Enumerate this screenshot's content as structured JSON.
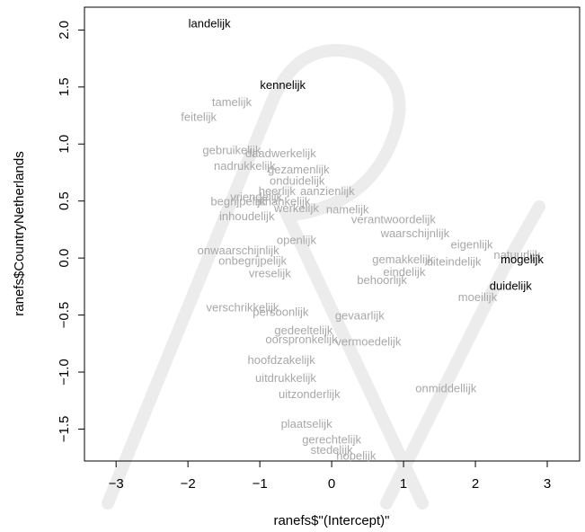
{
  "chart_data": {
    "type": "text-scatter",
    "x_label": "ranefs$\"(Intercept)\"",
    "y_label": "ranefs$CountryNetherlands",
    "xlim": [
      -3.44,
      3.45
    ],
    "ylim": [
      -1.78,
      2.2
    ],
    "xticks": [
      {
        "value": -3,
        "label": "−3"
      },
      {
        "value": -2,
        "label": "−2"
      },
      {
        "value": -1,
        "label": "−1"
      },
      0,
      1,
      2,
      3
    ],
    "yticks": [
      {
        "value": -1.5,
        "label": "−1.5"
      },
      {
        "value": -1,
        "label": "−1.0"
      },
      {
        "value": -0.5,
        "label": "−0.5"
      },
      {
        "value": 0,
        "label": "0.0"
      },
      0.5,
      {
        "value": 1,
        "label": "1.0"
      },
      1.5,
      {
        "value": 2,
        "label": "2.0"
      }
    ],
    "labels": [
      "landelijk",
      "kennelijk",
      "tamelijk",
      "feitelijk",
      "gebruikelijk",
      "daadwerkelijk",
      "nadrukkelijk",
      "gezamenlijk",
      "onduidelijk",
      "heerlijk",
      "aanzienlijk",
      "begrijpelijk",
      "vriendelijk",
      "afhankelijk",
      "werkelijk",
      "inhoudelijk",
      "namelijk",
      "verantwoordelijk",
      "waarschijnlijk",
      "eigenlijk",
      "natuurlijk",
      "mogelijk",
      "uiteindelijk",
      "gemakkelijk",
      "duidelijk",
      "moeilijk",
      "onwaarschijnlijk",
      "onbegrijpelijk",
      "openlijk",
      "eindelijk",
      "behoorlijk",
      "vreselijk",
      "verschrikkelijk",
      "persoonlijk",
      "gevaarlijk",
      "vermoedelijk",
      "gedeeltelijk",
      "oorspronkelijk",
      "hoofdzakelijk",
      "uitdrukkelijk",
      "uitzonderlijk",
      "onmiddellijk",
      "plaatselijk",
      "gerechtelijk",
      "stedelijk",
      "hopelijk"
    ],
    "x": [
      -1.7,
      -0.68,
      -1.39,
      -1.85,
      -1.39,
      -0.71,
      -1.21,
      -0.46,
      -0.48,
      -0.76,
      -0.06,
      -1.3,
      -1.05,
      -0.68,
      -0.49,
      -1.18,
      0.22,
      0.86,
      1.16,
      1.95,
      2.58,
      2.65,
      1.7,
      0.99,
      2.49,
      2.03,
      -1.3,
      -1.1,
      -0.49,
      1.01,
      0.7,
      -0.86,
      -1.24,
      -0.71,
      0.39,
      0.51,
      -0.39,
      -0.42,
      -0.7,
      -0.64,
      -0.31,
      1.59,
      -0.35,
      0.0,
      0.0,
      0.34
    ],
    "values": [
      2.05,
      1.51,
      1.36,
      1.23,
      0.94,
      0.91,
      0.8,
      0.77,
      0.67,
      0.58,
      0.58,
      0.49,
      0.53,
      0.49,
      0.43,
      0.36,
      0.42,
      0.33,
      0.21,
      0.11,
      0.02,
      -0.02,
      -0.04,
      -0.02,
      -0.25,
      -0.35,
      0.06,
      -0.03,
      0.15,
      -0.13,
      -0.2,
      -0.14,
      -0.44,
      -0.48,
      -0.51,
      -0.74,
      -0.64,
      -0.72,
      -0.9,
      -1.06,
      -1.2,
      -1.15,
      -1.46,
      -1.6,
      -1.69,
      -1.74
    ],
    "colors": [
      "#000000",
      "#000000",
      "#a8a8a8",
      "#a8a8a8",
      "#a8a8a8",
      "#a8a8a8",
      "#a8a8a8",
      "#a8a8a8",
      "#a8a8a8",
      "#a8a8a8",
      "#a8a8a8",
      "#a8a8a8",
      "#a8a8a8",
      "#a8a8a8",
      "#a8a8a8",
      "#a8a8a8",
      "#a8a8a8",
      "#a8a8a8",
      "#a8a8a8",
      "#a8a8a8",
      "#a8a8a8",
      "#000000",
      "#a8a8a8",
      "#a8a8a8",
      "#000000",
      "#a8a8a8",
      "#a8a8a8",
      "#a8a8a8",
      "#a8a8a8",
      "#a8a8a8",
      "#a8a8a8",
      "#a8a8a8",
      "#a8a8a8",
      "#a8a8a8",
      "#a8a8a8",
      "#a8a8a8",
      "#a8a8a8",
      "#a8a8a8",
      "#a8a8a8",
      "#a8a8a8",
      "#a8a8a8",
      "#a8a8a8",
      "#a8a8a8",
      "#a8a8a8",
      "#a8a8a8",
      "#a8a8a8"
    ]
  }
}
